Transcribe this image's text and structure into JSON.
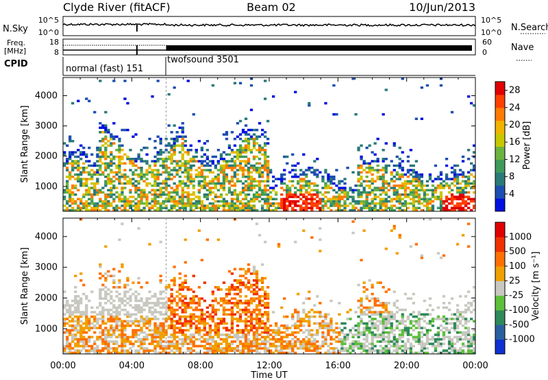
{
  "header": {
    "station": "Clyde River (fitACF)",
    "beam": "Beam 02",
    "date": "10/Jun/2013"
  },
  "top_panels": {
    "nsky_label": "N.Sky",
    "nsearch_label": "N.Search",
    "noise_ticks": [
      "10^5",
      "10^0"
    ],
    "freq_label": "Freq.",
    "freq_unit": "[MHz]",
    "freq_ticks": [
      "18",
      "8"
    ],
    "nave_label": "Nave",
    "nave_ticks": [
      "60",
      "0"
    ],
    "cpid_label": "CPID",
    "cpid_segments": [
      {
        "label": "normal (fast) 151",
        "start_hour": 0
      },
      {
        "label": "twofsound 3501",
        "start_hour": 6.0
      }
    ]
  },
  "chart_data": [
    {
      "type": "heatmap",
      "name": "power",
      "xlabel": "Time UT",
      "ylabel": "Slant Range [km]",
      "x_ticks": [
        "00:00",
        "04:00",
        "08:00",
        "12:00",
        "16:00",
        "20:00",
        "00:00"
      ],
      "x_range_hours": [
        0,
        24
      ],
      "y_ticks": [
        1000,
        2000,
        3000,
        4000
      ],
      "y_range_km": [
        180,
        4600
      ],
      "colorbar": {
        "label": "Power [dB]",
        "ticks": [
          4,
          8,
          12,
          16,
          20,
          24,
          28
        ],
        "range": [
          0,
          30
        ],
        "colors": [
          "#0010e0",
          "#1d4fb0",
          "#2a7a78",
          "#3e9a5a",
          "#6db33f",
          "#c8c800",
          "#f0b400",
          "#ff7a00",
          "#ff4000",
          "#e00000"
        ]
      }
    },
    {
      "type": "heatmap",
      "name": "velocity",
      "xlabel": "Time UT",
      "ylabel": "Slant Range [km]",
      "x_ticks": [
        "00:00",
        "04:00",
        "08:00",
        "12:00",
        "16:00",
        "20:00",
        "00:00"
      ],
      "x_range_hours": [
        0,
        24
      ],
      "y_ticks": [
        1000,
        2000,
        3000,
        4000
      ],
      "y_range_km": [
        180,
        4600
      ],
      "colorbar": {
        "label": "Velocity [m s⁻¹]",
        "ticks": [
          "1000",
          "500",
          "100",
          "25",
          "-25",
          "-100",
          "-500",
          "-1000"
        ],
        "colors": [
          "#1030d0",
          "#2a60a0",
          "#2e8a5a",
          "#5cc03a",
          "#c8c8c0",
          "#f0a000",
          "#ff7000",
          "#f03000",
          "#e00000"
        ]
      }
    }
  ]
}
